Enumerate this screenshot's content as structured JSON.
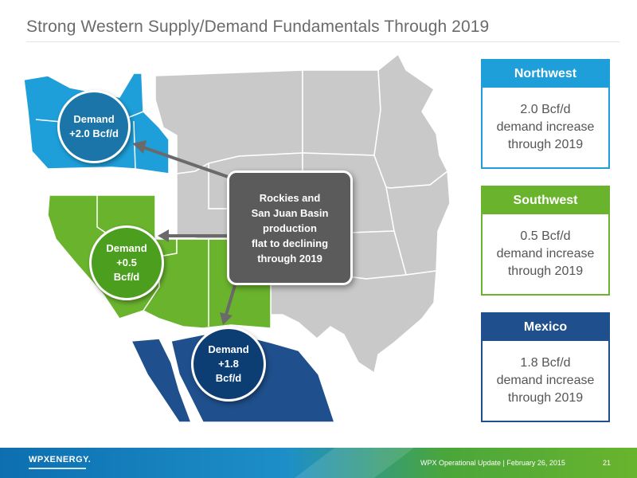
{
  "header": {
    "title": "Strong Western Supply/Demand Fundamentals Through 2019"
  },
  "map": {
    "bubbles": {
      "northwest": {
        "line1": "Demand",
        "line2": "+2.0 Bcf/d"
      },
      "southwest": {
        "line1": "Demand",
        "line2": "+0.5",
        "line3": "Bcf/d"
      },
      "mexico": {
        "line1": "Demand",
        "line2": "+1.8",
        "line3": "Bcf/d"
      }
    },
    "center_callout": {
      "line1": "Rockies and",
      "line2": "San Juan Basin",
      "line3": "production",
      "line4": "flat to declining",
      "line5": "through 2019"
    }
  },
  "cards": {
    "northwest": {
      "title": "Northwest",
      "line1": "2.0 Bcf/d",
      "line2": "demand increase",
      "line3": "through 2019"
    },
    "southwest": {
      "title": "Southwest",
      "line1": "0.5 Bcf/d",
      "line2": "demand increase",
      "line3": "through 2019"
    },
    "mexico": {
      "title": "Mexico",
      "line1": "1.8 Bcf/d",
      "line2": "demand increase",
      "line3": "through 2019"
    }
  },
  "footer": {
    "logo": "WPXENERGY.",
    "text": "WPX Operational Update  |  February 26, 2015",
    "page": "21"
  },
  "colors": {
    "northwest": "#1e9fd9",
    "southwest": "#6ab42d",
    "mexico": "#1f4f8c",
    "other_states": "#c9c9c9"
  }
}
